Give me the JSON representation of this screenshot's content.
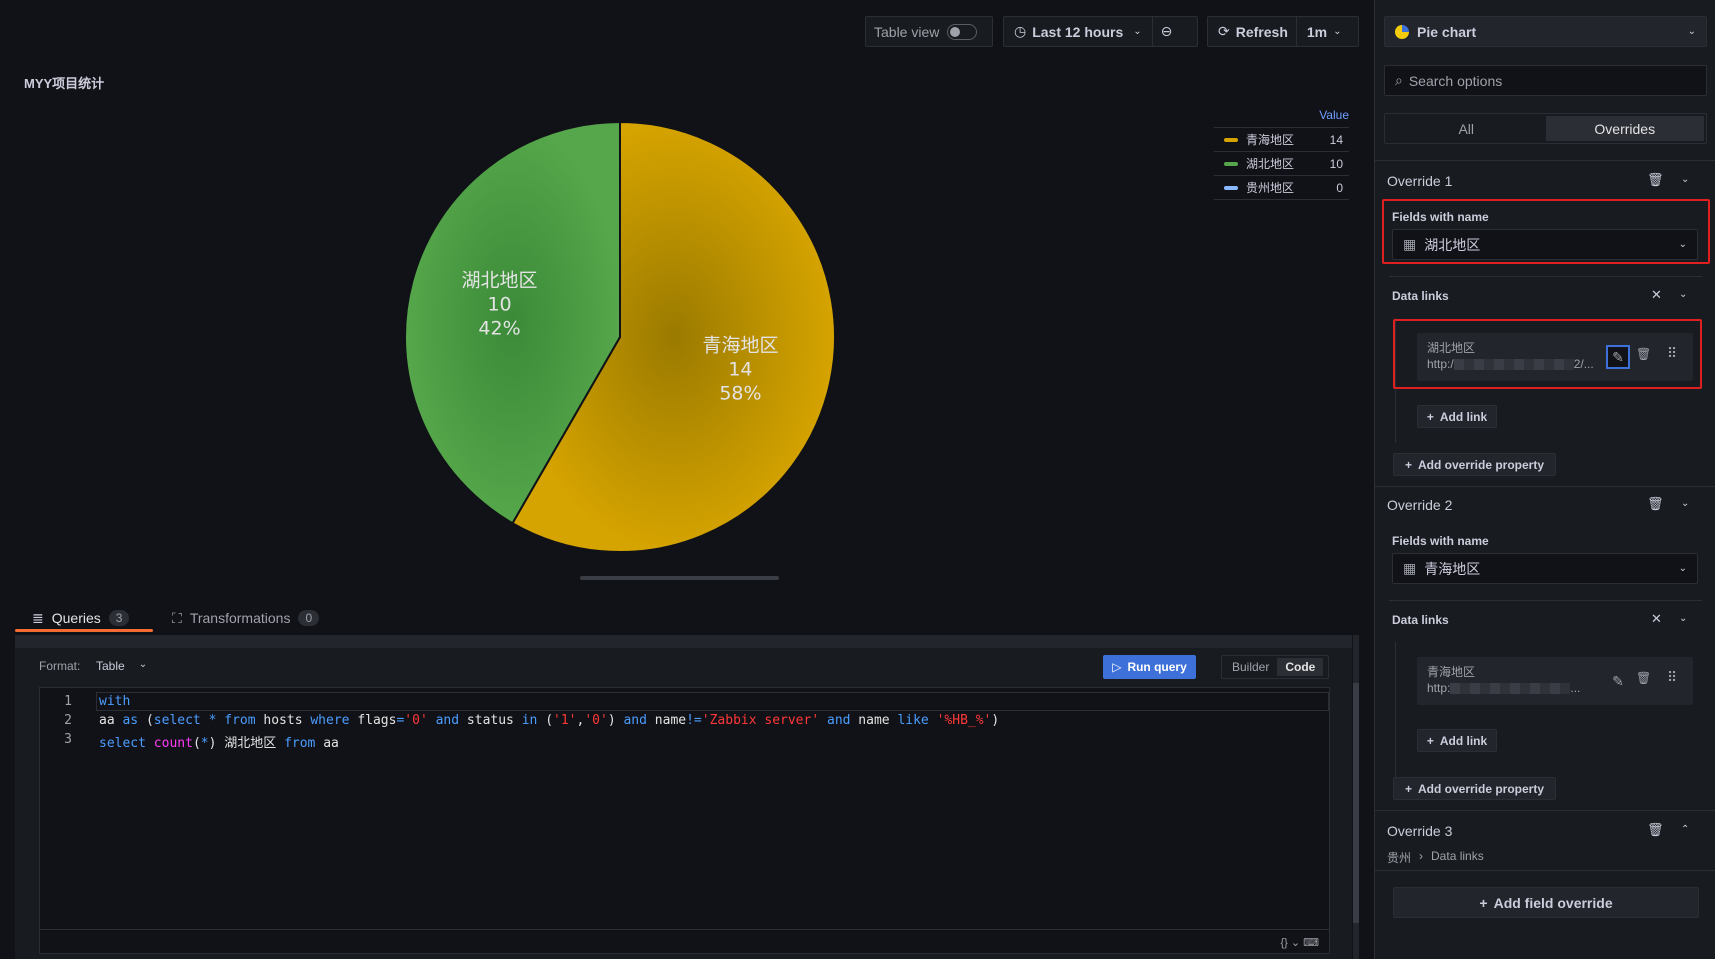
{
  "toolbar": {
    "table_view": "Table view",
    "time_range": "Last 12 hours",
    "refresh": "Refresh",
    "interval": "1m"
  },
  "panel": {
    "title": "MYY项目统计"
  },
  "chart_data": {
    "type": "pie",
    "legend_header": "Value",
    "legend_placement": "right",
    "slices": [
      {
        "name": "青海地区",
        "value": 14,
        "percent": "58%",
        "color": "#d6a400"
      },
      {
        "name": "湖北地区",
        "value": 10,
        "percent": "42%",
        "color": "#56a64b"
      },
      {
        "name": "贵州地区",
        "value": 0,
        "percent": "0%",
        "color": "#8ab8ff"
      }
    ]
  },
  "query_tabs": [
    {
      "label": "Queries",
      "count": "3"
    },
    {
      "label": "Transformations",
      "count": "0"
    }
  ],
  "query": {
    "format_label": "Format:",
    "format_value": "Table",
    "run_query": "Run query",
    "builder": "Builder",
    "code": "Code",
    "line_numbers": [
      "1",
      "2",
      "3"
    ]
  },
  "options": {
    "visualization": "Pie chart",
    "search_placeholder": "Search options",
    "tabs": [
      "All",
      "Overrides"
    ],
    "overrides": [
      {
        "title": "Override 1",
        "matcher_label": "Fields with name",
        "matcher_value": "湖北地区",
        "property": "Data links",
        "link_title": "湖北地区",
        "link_url_start": "http:/",
        "link_url_end": "2/...",
        "add_link": "Add link",
        "add_property": "Add override property"
      },
      {
        "title": "Override 2",
        "matcher_label": "Fields with name",
        "matcher_value": "青海地区",
        "property": "Data links",
        "link_title": "青海地区",
        "link_url_start": "http:",
        "link_url_end": "...",
        "add_link": "Add link",
        "add_property": "Add override property"
      },
      {
        "title": "Override 3",
        "crumb_field": "贵州",
        "crumb_property": "Data links"
      }
    ],
    "add_field_override": "Add field override"
  }
}
